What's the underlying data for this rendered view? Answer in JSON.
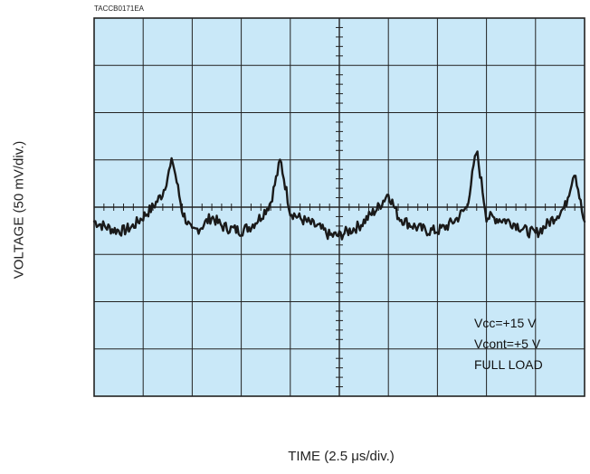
{
  "figure_id": "TACCB0171EA",
  "chart_data": {
    "type": "line",
    "title": "",
    "xlabel": "TIME (2.5 μs/div.)",
    "ylabel": "VOLTAGE (50 mV/div.)",
    "divisions": {
      "x": 10,
      "y": 8
    },
    "xlim": [
      0,
      25
    ],
    "ylim": [
      -200,
      200
    ],
    "x_units": "μs",
    "y_units": "mV",
    "grid": true,
    "background_color": "#c9e8f8",
    "grid_color": "#222222",
    "trace_color": "#1a1a1a",
    "annotations": [
      "Vcc=+15 V",
      "Vcont=+5 V",
      "FULL LOAD"
    ],
    "series": [
      {
        "x": [
          0.0,
          0.5,
          1.0,
          1.5,
          2.0,
          2.5,
          3.0,
          3.5,
          4.0,
          4.5,
          5.0,
          5.5,
          6.0,
          6.5,
          7.0,
          7.5,
          8.0,
          8.5,
          9.0,
          9.5,
          10.0,
          10.5,
          11.0,
          11.5,
          12.0,
          12.5,
          13.0,
          13.5,
          14.0,
          14.5,
          15.0,
          15.5,
          16.0,
          16.5,
          17.0,
          17.5,
          18.0,
          18.5,
          19.0,
          19.5,
          20.0,
          20.5,
          21.0,
          21.5,
          22.0,
          22.5,
          23.0,
          23.5,
          24.0,
          24.5,
          25.0
        ],
        "y": [
          -15,
          -20,
          -24,
          -25,
          -20,
          -10,
          0,
          15,
          50,
          -5,
          -27,
          -20,
          -10,
          -20,
          -23,
          -25,
          -20,
          -10,
          5,
          50,
          -5,
          -12,
          -17,
          -22,
          -30,
          -30,
          -25,
          -20,
          -10,
          0,
          15,
          -10,
          -17,
          -22,
          -25,
          -25,
          -20,
          -12,
          0,
          60,
          -10,
          -12,
          -14,
          -18,
          -25,
          -28,
          -20,
          -10,
          0,
          40,
          -20
        ]
      }
    ]
  }
}
